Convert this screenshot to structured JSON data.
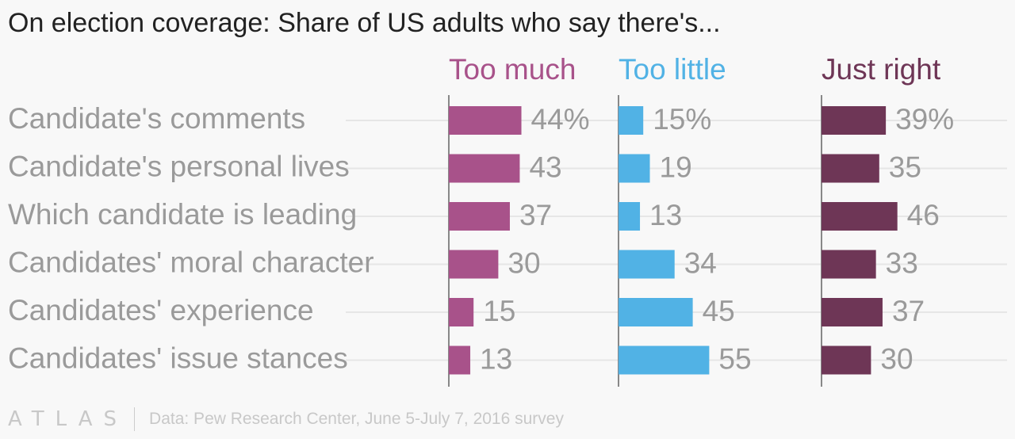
{
  "title": "On election coverage: Share of US adults who say there's...",
  "chart_data": {
    "type": "bar",
    "orientation": "horizontal",
    "panels": "small-multiples",
    "categories": [
      "Candidate's comments",
      "Candidate's personal lives",
      "Which candidate is leading",
      "Candidates' moral character",
      "Candidates' experience",
      "Candidates' issue stances"
    ],
    "series": [
      {
        "name": "Too much",
        "color": "#a8528a",
        "values": [
          44,
          43,
          37,
          30,
          15,
          13
        ],
        "labels": [
          "44%",
          "43",
          "37",
          "30",
          "15",
          "13"
        ]
      },
      {
        "name": "Too little",
        "color": "#51b2e5",
        "values": [
          15,
          19,
          13,
          34,
          45,
          55
        ],
        "labels": [
          "15%",
          "19",
          "13",
          "34",
          "45",
          "55"
        ]
      },
      {
        "name": "Just right",
        "color": "#6e3656",
        "values": [
          39,
          35,
          46,
          33,
          37,
          30
        ],
        "labels": [
          "39%",
          "35",
          "46",
          "33",
          "37",
          "30"
        ]
      }
    ],
    "xlim": [
      0,
      100
    ],
    "grid": true
  },
  "footer": {
    "logo": "ATLAS",
    "source": "Data: Pew Research Center, June 5-July 7, 2016 survey"
  }
}
